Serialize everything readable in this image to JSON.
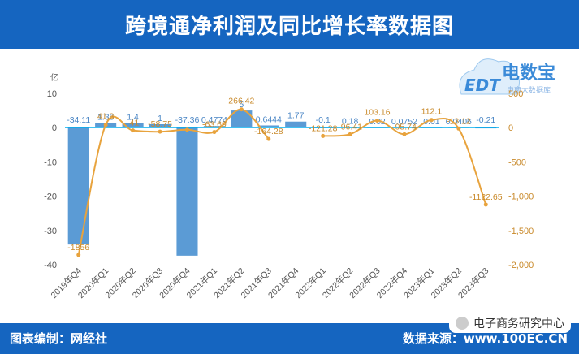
{
  "header": {
    "title": "跨境通净利润及同比增长率数据图"
  },
  "footer": {
    "source_left": "图表编制：网经社",
    "source_right": "数据来源：www.100EC.CN"
  },
  "watermark": {
    "text": "电子商务研究中心"
  },
  "logo": {
    "brand": "电数宝",
    "sub": "电商大数据库",
    "mark": "EDT"
  },
  "colors": {
    "bar": "#5b9bd5",
    "line": "#e8a33d",
    "header": "#1565c0",
    "zero_line": "#00aeef"
  },
  "chart_data": {
    "type": "bar",
    "title": "",
    "categories": [
      "2019年Q4",
      "2020年Q1",
      "2020年Q2",
      "2020年Q3",
      "2020年Q4",
      "2021年Q1",
      "2021年Q2",
      "2021年Q3",
      "2021年Q4",
      "2022年Q1",
      "2022年Q2",
      "2022年Q3",
      "2022年Q4",
      "2023年Q1",
      "2023年Q2",
      "2023年Q3"
    ],
    "series": [
      {
        "name": "",
        "type": "bar",
        "axis": "left",
        "values": [
          -34.11,
          1.38,
          1.4,
          1,
          -37.36,
          0.4774,
          5,
          0.6444,
          1.77,
          -0.1,
          0.18,
          0.02,
          0.0752,
          0.01,
          0.0406,
          -0.21
        ],
        "labels": [
          "-34.11",
          "1.38",
          "1.4",
          "1",
          "-37.36",
          "0.4774",
          "5",
          "0.6444",
          "1.77",
          "-0.1",
          "0.18",
          "0.02",
          "0.0752",
          "0.01",
          "0.0406",
          "-0.21"
        ]
      },
      {
        "name": "",
        "type": "line",
        "axis": "right",
        "values": [
          -1856,
          41.3,
          -41,
          -58.75,
          -30,
          -63.69,
          266.42,
          -164.28,
          null,
          -121.28,
          -96.41,
          103.16,
          -95.74,
          112.1,
          -13.12,
          -1122.65
        ],
        "labels": [
          "-1856",
          "41.3",
          "-41",
          "-58.75",
          "",
          "-63.69",
          "266.42",
          "-164.28",
          "",
          "-121.28",
          "-96.41",
          "103.16",
          "-95.74",
          "112.1",
          "-13.12",
          "-1122.65"
        ]
      }
    ],
    "y_left": {
      "label": "亿",
      "min": -40,
      "max": 10,
      "ticks": [
        "10",
        "0",
        "-10",
        "-20",
        "-30",
        "-40"
      ]
    },
    "y_right": {
      "min": -2000,
      "max": 500,
      "ticks": [
        "500",
        "0",
        "-500",
        "-1,000",
        "-1,500",
        "-2,000"
      ]
    },
    "grid": false,
    "legend": "none"
  }
}
